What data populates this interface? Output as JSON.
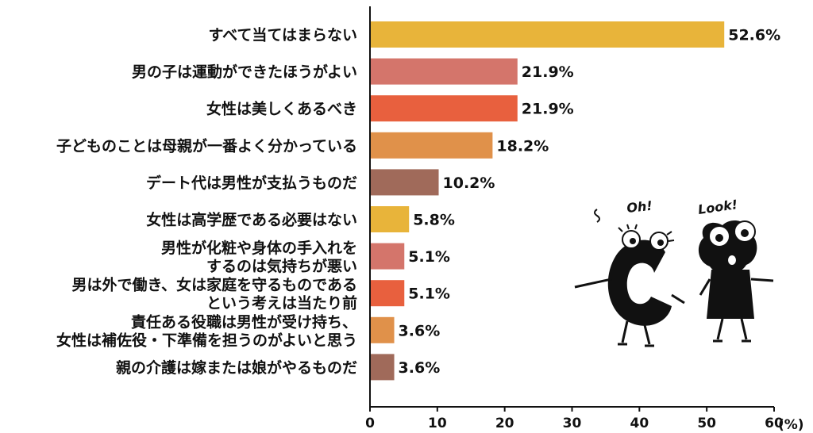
{
  "chart_data": {
    "type": "bar",
    "orientation": "horizontal",
    "categories": [
      [
        "すべて当てはまらない"
      ],
      [
        "男の子は運動ができたほうがよい"
      ],
      [
        "女性は美しくあるべき"
      ],
      [
        "子どものことは母親が一番よく分かっている"
      ],
      [
        "デート代は男性が支払うものだ"
      ],
      [
        "女性は高学歴である必要はない"
      ],
      [
        "男性が化粧や身体の手入れを",
        "するのは気持ちが悪い"
      ],
      [
        "男は外で働き、女は家庭を守るものである",
        "という考えは当たり前"
      ],
      [
        "責任ある役職は男性が受け持ち、",
        "女性は補佐役・下準備を担うのがよいと思う"
      ],
      [
        "親の介護は嫁または娘がやるものだ"
      ]
    ],
    "values": [
      52.6,
      21.9,
      21.9,
      18.2,
      10.2,
      5.8,
      5.1,
      5.1,
      3.6,
      3.6
    ],
    "value_labels": [
      "52.6%",
      "21.9%",
      "21.9%",
      "18.2%",
      "10.2%",
      "5.8%",
      "5.1%",
      "5.1%",
      "3.6%",
      "3.6%"
    ],
    "colors": [
      "#E8B43A",
      "#D4756B",
      "#E8603E",
      "#E0914A",
      "#A06A5A",
      "#E8B43A",
      "#D4756B",
      "#E8603E",
      "#E0914A",
      "#A06A5A"
    ],
    "xlim": [
      0,
      60
    ],
    "xticks": [
      "0",
      "10",
      "20",
      "30",
      "40",
      "50",
      "60"
    ],
    "xunit": "(%)",
    "grid": false
  },
  "illustration": {
    "left_character_speech": "Oh!",
    "right_character_speech": "Look!"
  }
}
